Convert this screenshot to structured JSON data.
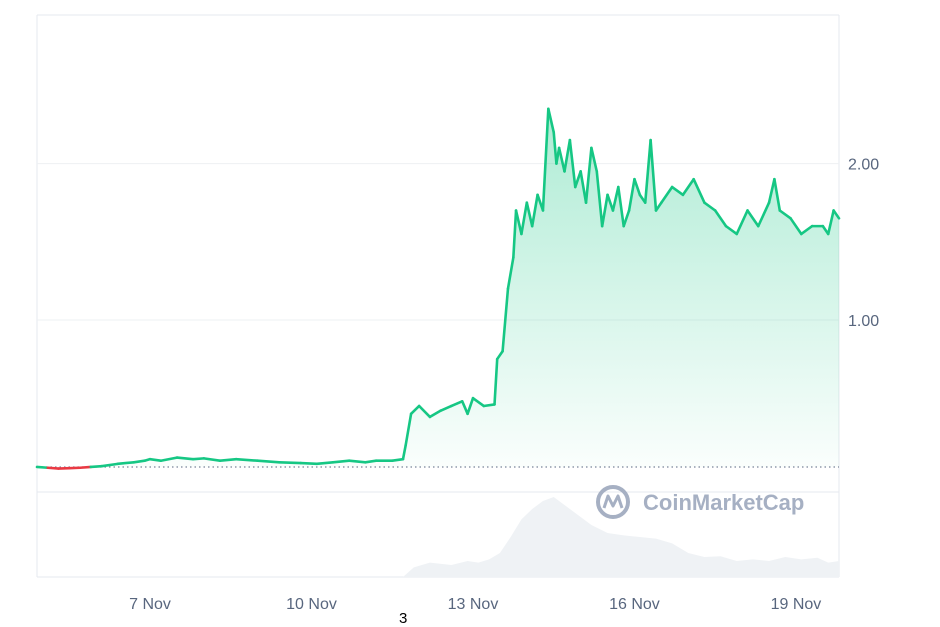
{
  "chart_data": {
    "type": "area",
    "x_ticks": [
      "7 Nov",
      "10 Nov",
      "13 Nov",
      "16 Nov",
      "19 Nov"
    ],
    "x_range": [
      4.9,
      19.8
    ],
    "y_ticks": [
      "2.00",
      "1.00"
    ],
    "y_ticks_values": [
      2.0,
      1.0
    ],
    "y_range": [
      -0.1,
      2.95
    ],
    "baseline": 0.06,
    "grid": true,
    "series": [
      {
        "color_up": "#16c784",
        "color_down": "#ea3943",
        "x": [
          4.9,
          5.1,
          5.3,
          5.5,
          5.7,
          5.9,
          6.1,
          6.4,
          6.7,
          6.9,
          7.0,
          7.2,
          7.5,
          7.8,
          8.0,
          8.3,
          8.6,
          9.0,
          9.4,
          9.8,
          10.1,
          10.4,
          10.7,
          11.0,
          11.2,
          11.5,
          11.7,
          11.75,
          11.85,
          12.0,
          12.2,
          12.4,
          12.6,
          12.8,
          12.9,
          13.0,
          13.2,
          13.4,
          13.45,
          13.55,
          13.65,
          13.75,
          13.8,
          13.9,
          14.0,
          14.1,
          14.2,
          14.3,
          14.4,
          14.5,
          14.55,
          14.6,
          14.7,
          14.8,
          14.9,
          15.0,
          15.1,
          15.2,
          15.3,
          15.4,
          15.5,
          15.6,
          15.7,
          15.8,
          15.9,
          16.0,
          16.1,
          16.2,
          16.3,
          16.4,
          16.5,
          16.7,
          16.9,
          17.1,
          17.3,
          17.5,
          17.7,
          17.9,
          18.1,
          18.3,
          18.5,
          18.6,
          18.7,
          18.9,
          19.1,
          19.3,
          19.5,
          19.6,
          19.7,
          19.8
        ],
        "values": [
          0.06,
          0.055,
          0.05,
          0.052,
          0.055,
          0.06,
          0.065,
          0.08,
          0.09,
          0.1,
          0.11,
          0.1,
          0.12,
          0.11,
          0.115,
          0.1,
          0.11,
          0.1,
          0.09,
          0.085,
          0.08,
          0.09,
          0.1,
          0.09,
          0.1,
          0.1,
          0.11,
          0.2,
          0.4,
          0.45,
          0.38,
          0.42,
          0.45,
          0.48,
          0.4,
          0.5,
          0.45,
          0.46,
          0.75,
          0.8,
          1.2,
          1.4,
          1.7,
          1.55,
          1.75,
          1.6,
          1.8,
          1.7,
          2.35,
          2.2,
          2.0,
          2.1,
          1.95,
          2.15,
          1.85,
          1.95,
          1.75,
          2.1,
          1.95,
          1.6,
          1.8,
          1.7,
          1.85,
          1.6,
          1.7,
          1.9,
          1.8,
          1.75,
          2.15,
          1.7,
          1.75,
          1.85,
          1.8,
          1.9,
          1.75,
          1.7,
          1.6,
          1.55,
          1.7,
          1.6,
          1.75,
          1.9,
          1.7,
          1.65,
          1.55,
          1.6,
          1.6,
          1.55,
          1.7,
          1.65
        ]
      }
    ],
    "volume": {
      "color": "#eff2f5",
      "x": [
        11.7,
        11.9,
        12.2,
        12.6,
        12.9,
        13.1,
        13.3,
        13.5,
        13.7,
        13.9,
        14.1,
        14.3,
        14.5,
        14.7,
        14.9,
        15.2,
        15.5,
        15.8,
        16.1,
        16.4,
        16.7,
        17.0,
        17.3,
        17.6,
        17.9,
        18.2,
        18.5,
        18.8,
        19.1,
        19.4,
        19.6,
        19.8
      ],
      "values": [
        0.0,
        0.12,
        0.18,
        0.15,
        0.2,
        0.18,
        0.22,
        0.3,
        0.5,
        0.72,
        0.85,
        0.95,
        1.0,
        0.9,
        0.8,
        0.65,
        0.55,
        0.52,
        0.5,
        0.48,
        0.42,
        0.3,
        0.25,
        0.26,
        0.2,
        0.22,
        0.2,
        0.25,
        0.22,
        0.24,
        0.18,
        0.2
      ]
    },
    "watermark": "CoinMarketCap",
    "footnote": "3"
  }
}
